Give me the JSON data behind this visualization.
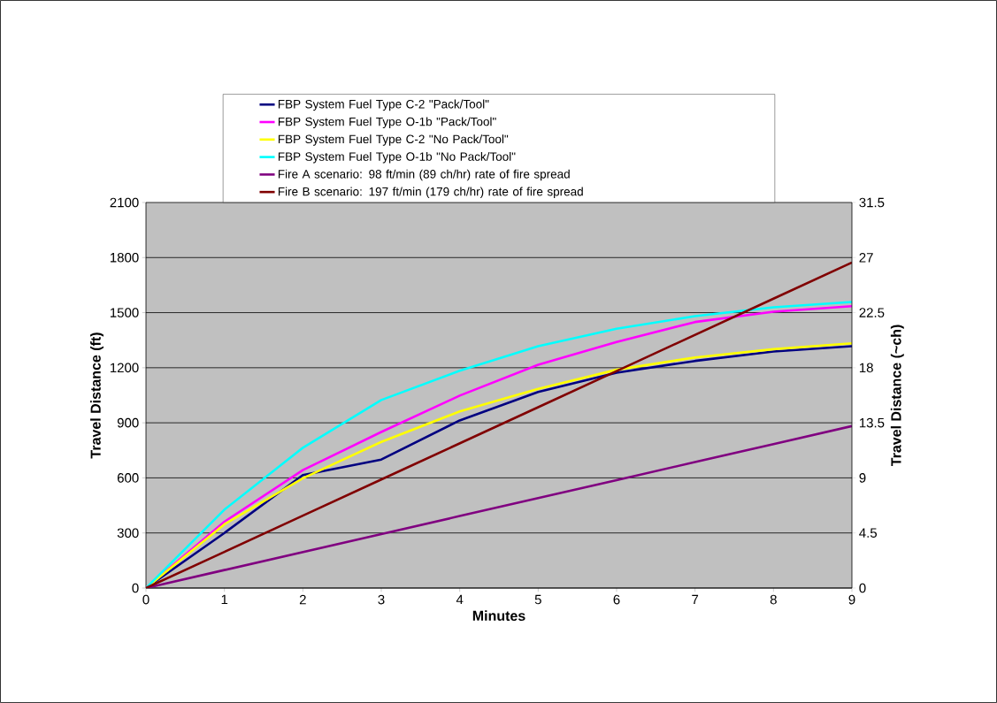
{
  "chart_data": {
    "type": "line",
    "xlabel": "Minutes",
    "ylabel": "Travel Distance (ft)",
    "y2label": "Travel Distance (~ch)",
    "x": [
      0,
      1,
      2,
      3,
      4,
      5,
      6,
      7,
      8,
      9
    ],
    "series": [
      {
        "name": "FBP System Fuel Type C-2 \"Pack/Tool\"",
        "color": "#000080",
        "values": [
          0,
          300,
          615,
          700,
          913,
          1068,
          1173,
          1237,
          1288,
          1317
        ]
      },
      {
        "name": "FBP System Fuel Type O-1b \"Pack/Tool\"",
        "color": "#ff00ff",
        "values": [
          0,
          361,
          642,
          850,
          1048,
          1216,
          1340,
          1449,
          1505,
          1535
        ]
      },
      {
        "name": "FBP System Fuel Type C-2 \"No Pack/Tool\"",
        "color": "#ffff00",
        "values": [
          0,
          347,
          598,
          796,
          962,
          1085,
          1189,
          1256,
          1301,
          1333
        ]
      },
      {
        "name": "FBP System Fuel Type O-1b \"No Pack/Tool\"",
        "color": "#00ffff",
        "values": [
          0,
          427,
          764,
          1024,
          1184,
          1317,
          1412,
          1481,
          1529,
          1558
        ]
      },
      {
        "name": "Fire A scenario: 98 ft/min (89 ch/hr) rate of fire spread",
        "color": "#800080",
        "values": [
          0,
          98,
          196,
          294,
          392,
          490,
          588,
          686,
          784,
          882
        ]
      },
      {
        "name": "Fire B scenario: 197 ft/min (179 ch/hr) rate of fire spread",
        "color": "#800000",
        "values": [
          0,
          197,
          394,
          591,
          788,
          985,
          1182,
          1379,
          1576,
          1773
        ]
      }
    ],
    "xlim": [
      0,
      9
    ],
    "xticks": [
      0,
      1,
      2,
      3,
      4,
      5,
      6,
      7,
      8,
      9
    ],
    "ylim": [
      0,
      2100
    ],
    "yticks": [
      0,
      300,
      600,
      900,
      1200,
      1500,
      1800,
      2100
    ],
    "y2lim": [
      0,
      31.5
    ],
    "y2ticks": [
      0,
      4.5,
      9,
      13.5,
      18,
      22.5,
      27,
      31.5
    ],
    "grid": "y",
    "legend": "top",
    "marker": "none",
    "line_style": "solid"
  }
}
